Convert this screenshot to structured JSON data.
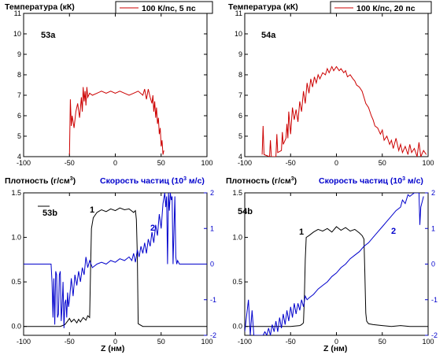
{
  "chart_data": [
    {
      "type": "line",
      "panel": "53a",
      "ylabel": "Температура (кК)",
      "legend": "100 К/пс, 5 пс",
      "xlim": [
        -100,
        100
      ],
      "ylim": [
        4,
        11
      ],
      "xticks": [
        "-100",
        "-50",
        "0",
        "50",
        "100"
      ],
      "yticks": [
        "4",
        "5",
        "6",
        "7",
        "8",
        "9",
        "10",
        "11"
      ],
      "color": "#cc0000",
      "x": [
        -50,
        -49,
        -48,
        -47,
        -45,
        -43,
        -41,
        -39,
        -37,
        -36,
        -35,
        -34,
        -33,
        -32,
        -31,
        -30,
        -28,
        -25,
        -20,
        -15,
        -10,
        -5,
        0,
        5,
        10,
        15,
        20,
        25,
        30,
        32,
        34,
        36,
        38,
        40,
        41,
        42,
        43,
        44,
        45,
        46,
        47,
        48,
        49,
        50,
        51,
        52,
        53
      ],
      "y": [
        4.1,
        6.8,
        5.5,
        6.0,
        5.4,
        6.2,
        6.6,
        5.9,
        6.9,
        6.2,
        7.4,
        6.7,
        7.2,
        6.5,
        7.4,
        6.9,
        7.1,
        7.0,
        7.1,
        7.2,
        7.1,
        7.2,
        7.1,
        7.2,
        7.1,
        7.0,
        7.1,
        7.2,
        7.0,
        7.3,
        6.8,
        7.3,
        6.9,
        6.6,
        7.0,
        6.2,
        6.7,
        5.9,
        6.4,
        5.6,
        5.9,
        5.1,
        5.4,
        4.5,
        4.8,
        4.1,
        4.3
      ]
    },
    {
      "type": "line",
      "panel": "54a",
      "ylabel": "Температура (кК)",
      "legend": "100 К/пс, 20 пс",
      "xlim": [
        -100,
        100
      ],
      "ylim": [
        4,
        11
      ],
      "xticks": [
        "-100",
        "-50",
        "0",
        "50",
        "100"
      ],
      "yticks": [
        "4",
        "5",
        "6",
        "7",
        "8",
        "9",
        "10",
        "11"
      ],
      "color": "#cc0000",
      "x": [
        -81,
        -80,
        -79,
        -73,
        -72,
        -71,
        -66,
        -65,
        -64,
        -60,
        -59,
        -58,
        -55,
        -54,
        -53,
        -52,
        -50,
        -48,
        -46,
        -44,
        -42,
        -40,
        -38,
        -36,
        -34,
        -32,
        -30,
        -28,
        -26,
        -24,
        -22,
        -20,
        -18,
        -15,
        -12,
        -10,
        -8,
        -5,
        -3,
        0,
        3,
        5,
        8,
        10,
        12,
        15,
        18,
        20,
        22,
        25,
        28,
        30,
        32,
        35,
        38,
        40,
        42,
        45,
        48,
        50,
        52,
        55,
        58,
        60,
        62,
        65,
        68,
        70,
        72,
        75,
        78,
        80,
        82,
        85,
        88,
        90,
        92,
        95,
        98
      ],
      "y": [
        4.1,
        5.5,
        4.1,
        4.0,
        4.8,
        4.0,
        4.0,
        5.1,
        4.2,
        4.3,
        5.2,
        4.6,
        4.9,
        5.6,
        4.9,
        6.2,
        5.1,
        6.4,
        5.8,
        6.3,
        5.7,
        6.7,
        6.2,
        7.2,
        6.6,
        7.6,
        7.1,
        7.8,
        7.4,
        7.9,
        7.6,
        8.0,
        7.8,
        8.1,
        8.0,
        8.3,
        8.1,
        8.4,
        8.2,
        8.4,
        8.2,
        8.3,
        8.1,
        8.2,
        7.9,
        8.0,
        7.8,
        7.7,
        7.5,
        7.4,
        7.2,
        6.9,
        6.6,
        6.4,
        6.0,
        5.8,
        5.5,
        5.4,
        5.1,
        5.3,
        4.8,
        5.0,
        4.6,
        4.8,
        4.4,
        4.9,
        4.3,
        4.6,
        4.2,
        4.5,
        4.1,
        4.6,
        4.2,
        4.4,
        4.0,
        4.7,
        4.0,
        4.3,
        4.1
      ]
    },
    {
      "type": "line",
      "panel": "53b",
      "ylabel": "Плотность (г/см³)",
      "ylabel_right": "Скорость частиц (10³ м/с)",
      "xlabel": "Z (нм)",
      "xlim": [
        -100,
        100
      ],
      "ylim": [
        -0.1,
        1.5
      ],
      "ylim_right": [
        -2,
        2
      ],
      "xticks": [
        "-100",
        "-50",
        "0",
        "50",
        "100"
      ],
      "yticks": [
        "0.0",
        "0.5",
        "1.0",
        "1.5"
      ],
      "yticks_right": [
        "-2",
        "-1",
        "0",
        "1",
        "2"
      ],
      "series": [
        {
          "name": "1",
          "color": "#000000",
          "axis": "left",
          "x": [
            -100,
            -60,
            -55,
            -52,
            -50,
            -48,
            -45,
            -42,
            -40,
            -38,
            -35,
            -32,
            -30,
            -28,
            -27,
            -26,
            -24,
            -20,
            -15,
            -10,
            -5,
            0,
            5,
            10,
            15,
            20,
            22,
            23,
            24,
            25,
            30,
            40,
            50,
            60,
            80,
            100
          ],
          "y": [
            0.0,
            0.0,
            0.02,
            0.06,
            0.09,
            0.05,
            0.08,
            0.04,
            0.08,
            0.05,
            0.1,
            0.07,
            0.12,
            0.1,
            0.6,
            1.1,
            1.22,
            1.28,
            1.31,
            1.29,
            1.32,
            1.3,
            1.33,
            1.31,
            1.32,
            1.28,
            1.3,
            1.2,
            0.8,
            0.03,
            0.0,
            0.0,
            0.0,
            0.0,
            0.0,
            0.0
          ]
        },
        {
          "name": "2",
          "color": "#0000cc",
          "axis": "right",
          "x": [
            -100,
            -70,
            -69,
            -68,
            -67,
            -66,
            -65,
            -64,
            -63,
            -62,
            -61,
            -60,
            -59,
            -58,
            -57,
            -56,
            -55,
            -54,
            -53,
            -52,
            -51,
            -50,
            -48,
            -46,
            -44,
            -42,
            -40,
            -38,
            -36,
            -34,
            -32,
            -30,
            -28,
            -25,
            -20,
            -15,
            -10,
            -5,
            0,
            5,
            10,
            15,
            18,
            20,
            22,
            24,
            26,
            28,
            30,
            32,
            34,
            36,
            38,
            40,
            42,
            44,
            46,
            48,
            50,
            52,
            54,
            55,
            56,
            57,
            58,
            59,
            60,
            61,
            62,
            63,
            64,
            65,
            66,
            67,
            68,
            70,
            100
          ],
          "y": [
            0.0,
            0.0,
            -0.5,
            -1.5,
            -0.4,
            -1.7,
            -0.2,
            -0.3,
            -1.5,
            -1.4,
            -0.3,
            -0.2,
            -1.6,
            -1.2,
            -0.5,
            -1.8,
            -1.1,
            -1.0,
            -1.5,
            -0.8,
            -1.2,
            -1.0,
            -0.4,
            -0.9,
            -0.3,
            -0.6,
            -0.2,
            -0.5,
            -0.1,
            -0.3,
            0.2,
            -0.1,
            0.1,
            -0.1,
            0.0,
            0.05,
            0.0,
            0.1,
            0.05,
            0.15,
            0.1,
            0.2,
            0.1,
            0.3,
            0.05,
            0.4,
            0.2,
            0.5,
            0.3,
            0.6,
            0.3,
            0.7,
            0.5,
            0.9,
            0.6,
            1.1,
            0.8,
            1.4,
            1.0,
            1.7,
            2.0,
            1.6,
            1.9,
            0.0,
            2.0,
            1.5,
            2.0,
            1.8,
            1.9,
            0.0,
            1.0,
            1.9,
            0.2,
            0.0,
            0.1,
            0.0,
            0.0
          ]
        }
      ],
      "annotations": [
        "53b",
        "1",
        "2"
      ]
    },
    {
      "type": "line",
      "panel": "54b",
      "ylabel": "Плотность (г/см³)",
      "ylabel_right": "Скорость частиц (10³ м/с)",
      "xlabel": "Z (нм)",
      "xlim": [
        -100,
        100
      ],
      "ylim": [
        -0.1,
        1.5
      ],
      "ylim_right": [
        -2,
        2
      ],
      "xticks": [
        "-100",
        "-50",
        "0",
        "50",
        "100"
      ],
      "yticks": [
        "0.0",
        "0.5",
        "1.0",
        "1.5"
      ],
      "yticks_right": [
        "-2",
        "-1",
        "0",
        "1",
        "2"
      ],
      "series": [
        {
          "name": "1",
          "color": "#000000",
          "axis": "left",
          "x": [
            -100,
            -60,
            -50,
            -40,
            -38,
            -36,
            -35,
            -34,
            -33,
            -30,
            -25,
            -20,
            -15,
            -10,
            -5,
            0,
            5,
            10,
            15,
            20,
            25,
            28,
            30,
            31,
            32,
            33,
            35,
            40,
            50,
            60,
            70,
            80,
            90,
            100
          ],
          "y": [
            0.0,
            0.0,
            0.0,
            0.01,
            0.02,
            0.04,
            0.3,
            0.75,
            1.0,
            1.02,
            1.06,
            1.09,
            1.07,
            1.1,
            1.06,
            1.12,
            1.08,
            1.11,
            1.07,
            1.09,
            1.05,
            1.02,
            0.98,
            0.6,
            0.15,
            0.06,
            0.03,
            0.02,
            0.01,
            0.0,
            0.01,
            0.0,
            0.0,
            0.0
          ]
        },
        {
          "name": "2",
          "color": "#0000cc",
          "axis": "right",
          "x": [
            -100,
            -96,
            -94,
            -92,
            -90,
            -85,
            -80,
            -78,
            -76,
            -74,
            -72,
            -70,
            -68,
            -66,
            -64,
            -62,
            -60,
            -58,
            -56,
            -54,
            -52,
            -50,
            -48,
            -46,
            -44,
            -42,
            -40,
            -38,
            -36,
            -34,
            -32,
            -30,
            -25,
            -20,
            -15,
            -10,
            -5,
            0,
            5,
            10,
            15,
            20,
            25,
            30,
            35,
            40,
            45,
            50,
            55,
            60,
            65,
            70,
            72,
            75,
            78,
            80,
            85,
            90,
            91,
            92,
            95
          ],
          "y": [
            -1.9,
            -1.0,
            -2.0,
            -1.3,
            -2.0,
            -2.0,
            -2.0,
            -1.9,
            -2.0,
            -1.8,
            -2.0,
            -1.7,
            -1.9,
            -1.6,
            -1.9,
            -1.5,
            -1.8,
            -1.4,
            -1.7,
            -1.3,
            -1.6,
            -1.2,
            -1.5,
            -1.1,
            -1.4,
            -1.1,
            -1.3,
            -1.0,
            -1.2,
            -0.9,
            -1.0,
            -0.95,
            -0.85,
            -0.7,
            -0.6,
            -0.5,
            -0.35,
            -0.25,
            -0.1,
            0.0,
            0.15,
            0.25,
            0.35,
            0.5,
            0.6,
            0.75,
            0.9,
            1.05,
            1.2,
            1.35,
            1.5,
            1.6,
            1.8,
            1.7,
            1.95,
            1.9,
            2.0,
            2.0,
            1.1,
            1.6,
            1.9
          ]
        }
      ],
      "annotations": [
        "54b",
        "1",
        "2"
      ]
    }
  ],
  "labels": {
    "temp_ylabel": "Температура (кК)",
    "legend_53a": "100 К/пс, 5 пс",
    "legend_54a": "100 К/пс, 20 пс",
    "panel_53a": "53a",
    "panel_54a": "54a",
    "panel_53b": "53b",
    "panel_54b": "54b",
    "dens_ylabel": "Плотность (г/см",
    "dens_unit_sup": "3",
    "dens_close": ")",
    "vel_ylabel": "Скорость частиц (10",
    "vel_unit_sup": "3",
    "vel_close": " м/с)",
    "curve1": "1",
    "curve2": "2",
    "xlabel": "Z (нм)"
  }
}
